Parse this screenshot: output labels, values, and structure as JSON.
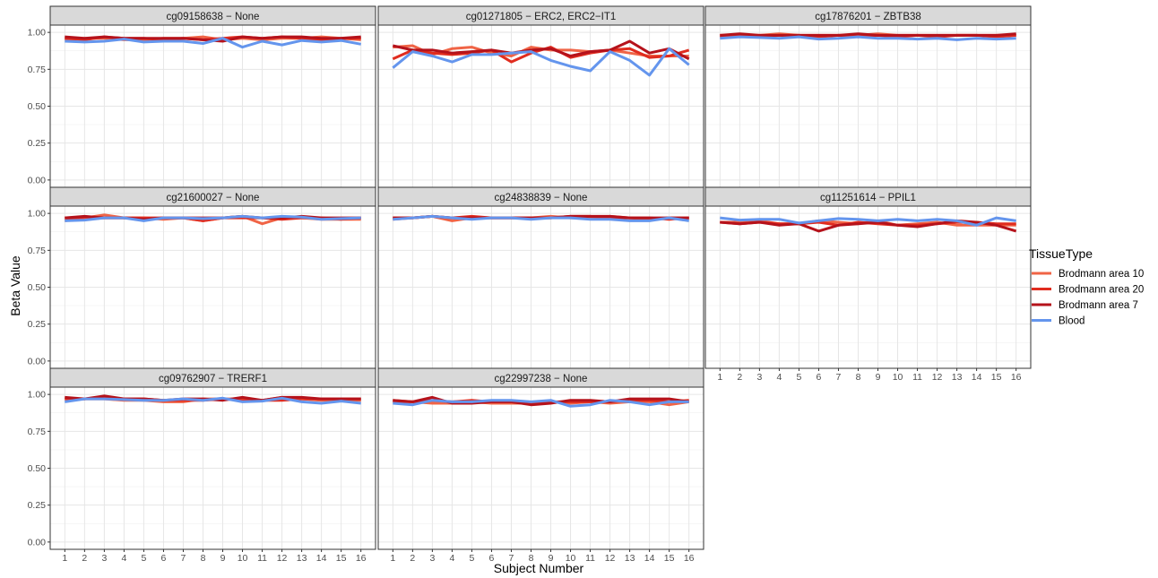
{
  "chart_data": {
    "type": "line",
    "xlabel": "Subject Number",
    "ylabel": "Beta Value",
    "x": [
      1,
      2,
      3,
      4,
      5,
      6,
      7,
      8,
      9,
      10,
      11,
      12,
      13,
      14,
      15,
      16
    ],
    "ylim": [
      0,
      1.0
    ],
    "yticks": [
      0.0,
      0.25,
      0.5,
      0.75,
      1.0
    ],
    "ytick_labels": [
      "0.00",
      "0.25",
      "0.50",
      "0.75",
      "1.00"
    ],
    "grid": true,
    "legend": {
      "title": "TissueType",
      "position": "right",
      "entries": [
        {
          "name": "Brodmann area 10",
          "color": "#f06446"
        },
        {
          "name": "Brodmann area 20",
          "color": "#e02c1f"
        },
        {
          "name": "Brodmann area 7",
          "color": "#b5121b"
        },
        {
          "name": "Blood",
          "color": "#6495ed"
        }
      ]
    },
    "panels": [
      {
        "title": "cg09158638 − None",
        "series": [
          {
            "name": "Brodmann area 10",
            "values": [
              0.95,
              0.96,
              0.96,
              0.95,
              0.95,
              0.96,
              0.96,
              0.97,
              0.95,
              0.96,
              0.95,
              0.96,
              0.96,
              0.97,
              0.96,
              0.95
            ]
          },
          {
            "name": "Brodmann area 20",
            "values": [
              0.96,
              0.95,
              0.97,
              0.96,
              0.96,
              0.95,
              0.96,
              0.95,
              0.96,
              0.97,
              0.96,
              0.97,
              0.96,
              0.95,
              0.96,
              0.96
            ]
          },
          {
            "name": "Brodmann area 7",
            "values": [
              0.97,
              0.96,
              0.97,
              0.96,
              0.96,
              0.96,
              0.96,
              0.95,
              0.94,
              0.97,
              0.96,
              0.97,
              0.97,
              0.96,
              0.96,
              0.97
            ]
          },
          {
            "name": "Blood",
            "values": [
              0.94,
              0.935,
              0.94,
              0.955,
              0.935,
              0.94,
              0.94,
              0.925,
              0.96,
              0.9,
              0.94,
              0.915,
              0.945,
              0.935,
              0.945,
              0.92
            ]
          }
        ]
      },
      {
        "title": "cg01271805 − ERC2, ERC2−IT1",
        "series": [
          {
            "name": "Brodmann area 10",
            "values": [
              0.9,
              0.91,
              0.85,
              0.89,
              0.9,
              0.86,
              0.84,
              0.9,
              0.88,
              0.88,
              0.87,
              0.88,
              0.86,
              0.84,
              0.84,
              0.84
            ]
          },
          {
            "name": "Brodmann area 20",
            "values": [
              0.82,
              0.88,
              0.86,
              0.85,
              0.86,
              0.88,
              0.8,
              0.86,
              0.9,
              0.83,
              0.86,
              0.88,
              0.89,
              0.83,
              0.84,
              0.88
            ]
          },
          {
            "name": "Brodmann area 7",
            "values": [
              0.91,
              0.88,
              0.88,
              0.86,
              0.87,
              0.88,
              0.86,
              0.88,
              0.89,
              0.84,
              0.87,
              0.88,
              0.94,
              0.86,
              0.89,
              0.82
            ]
          },
          {
            "name": "Blood",
            "values": [
              0.76,
              0.87,
              0.84,
              0.8,
              0.85,
              0.85,
              0.86,
              0.87,
              0.81,
              0.77,
              0.74,
              0.87,
              0.81,
              0.71,
              0.89,
              0.78
            ]
          }
        ]
      },
      {
        "title": "cg17876201 − ZBTB38",
        "series": [
          {
            "name": "Brodmann area 10",
            "values": [
              0.98,
              0.98,
              0.98,
              0.99,
              0.98,
              0.98,
              0.98,
              0.98,
              0.99,
              0.98,
              0.98,
              0.98,
              0.98,
              0.98,
              0.98,
              0.98
            ]
          },
          {
            "name": "Brodmann area 20",
            "values": [
              0.97,
              0.98,
              0.97,
              0.98,
              0.98,
              0.97,
              0.98,
              0.97,
              0.98,
              0.97,
              0.98,
              0.97,
              0.98,
              0.98,
              0.97,
              0.98
            ]
          },
          {
            "name": "Brodmann area 7",
            "values": [
              0.98,
              0.99,
              0.98,
              0.98,
              0.98,
              0.98,
              0.98,
              0.99,
              0.98,
              0.98,
              0.98,
              0.98,
              0.98,
              0.98,
              0.98,
              0.99
            ]
          },
          {
            "name": "Blood",
            "values": [
              0.96,
              0.97,
              0.965,
              0.96,
              0.97,
              0.955,
              0.96,
              0.97,
              0.96,
              0.96,
              0.955,
              0.96,
              0.95,
              0.96,
              0.955,
              0.96
            ]
          }
        ]
      },
      {
        "title": "cg21600027 − None",
        "series": [
          {
            "name": "Brodmann area 10",
            "values": [
              0.95,
              0.97,
              0.99,
              0.97,
              0.97,
              0.96,
              0.97,
              0.95,
              0.97,
              0.98,
              0.93,
              0.97,
              0.97,
              0.96,
              0.96,
              0.96
            ]
          },
          {
            "name": "Brodmann area 20",
            "values": [
              0.97,
              0.96,
              0.97,
              0.97,
              0.97,
              0.97,
              0.97,
              0.95,
              0.97,
              0.97,
              0.97,
              0.96,
              0.97,
              0.97,
              0.96,
              0.97
            ]
          },
          {
            "name": "Brodmann area 7",
            "values": [
              0.97,
              0.98,
              0.97,
              0.97,
              0.96,
              0.97,
              0.97,
              0.97,
              0.97,
              0.98,
              0.97,
              0.97,
              0.98,
              0.97,
              0.97,
              0.97
            ]
          },
          {
            "name": "Blood",
            "values": [
              0.95,
              0.955,
              0.97,
              0.97,
              0.95,
              0.97,
              0.97,
              0.965,
              0.97,
              0.98,
              0.97,
              0.98,
              0.975,
              0.96,
              0.965,
              0.97
            ]
          }
        ]
      },
      {
        "title": "cg24838839 − None",
        "series": [
          {
            "name": "Brodmann area 10",
            "values": [
              0.96,
              0.97,
              0.98,
              0.95,
              0.97,
              0.97,
              0.97,
              0.97,
              0.98,
              0.97,
              0.97,
              0.98,
              0.97,
              0.96,
              0.97,
              0.97
            ]
          },
          {
            "name": "Brodmann area 20",
            "values": [
              0.97,
              0.97,
              0.98,
              0.97,
              0.98,
              0.97,
              0.97,
              0.97,
              0.97,
              0.98,
              0.98,
              0.97,
              0.97,
              0.97,
              0.96,
              0.97
            ]
          },
          {
            "name": "Brodmann area 7",
            "values": [
              0.97,
              0.97,
              0.98,
              0.97,
              0.97,
              0.97,
              0.97,
              0.97,
              0.97,
              0.98,
              0.98,
              0.98,
              0.97,
              0.97,
              0.97,
              0.97
            ]
          },
          {
            "name": "Blood",
            "values": [
              0.96,
              0.97,
              0.98,
              0.97,
              0.96,
              0.97,
              0.97,
              0.96,
              0.97,
              0.97,
              0.96,
              0.96,
              0.95,
              0.95,
              0.97,
              0.95
            ]
          }
        ]
      },
      {
        "title": "cg11251614 − PPIL1",
        "series": [
          {
            "name": "Brodmann area 10",
            "values": [
              0.94,
              0.94,
              0.95,
              0.93,
              0.93,
              0.95,
              0.94,
              0.93,
              0.95,
              0.92,
              0.93,
              0.94,
              0.92,
              0.92,
              0.92,
              0.92
            ]
          },
          {
            "name": "Brodmann area 20",
            "values": [
              0.94,
              0.93,
              0.94,
              0.93,
              0.93,
              0.94,
              0.92,
              0.94,
              0.93,
              0.92,
              0.92,
              0.93,
              0.94,
              0.94,
              0.93,
              0.93
            ]
          },
          {
            "name": "Brodmann area 7",
            "values": [
              0.94,
              0.93,
              0.94,
              0.92,
              0.93,
              0.88,
              0.92,
              0.93,
              0.94,
              0.92,
              0.91,
              0.93,
              0.95,
              0.94,
              0.92,
              0.88
            ]
          },
          {
            "name": "Blood",
            "values": [
              0.97,
              0.955,
              0.96,
              0.96,
              0.935,
              0.95,
              0.965,
              0.96,
              0.95,
              0.96,
              0.95,
              0.96,
              0.95,
              0.92,
              0.97,
              0.95
            ]
          }
        ]
      },
      {
        "title": "cg09762907 − TRERF1",
        "series": [
          {
            "name": "Brodmann area 10",
            "values": [
              0.97,
              0.97,
              0.97,
              0.96,
              0.96,
              0.95,
              0.95,
              0.97,
              0.97,
              0.97,
              0.96,
              0.98,
              0.97,
              0.96,
              0.96,
              0.96
            ]
          },
          {
            "name": "Brodmann area 20",
            "values": [
              0.97,
              0.97,
              0.98,
              0.97,
              0.97,
              0.96,
              0.96,
              0.96,
              0.97,
              0.96,
              0.96,
              0.96,
              0.97,
              0.97,
              0.97,
              0.97
            ]
          },
          {
            "name": "Brodmann area 7",
            "values": [
              0.98,
              0.97,
              0.99,
              0.97,
              0.97,
              0.96,
              0.97,
              0.97,
              0.96,
              0.98,
              0.96,
              0.98,
              0.98,
              0.97,
              0.97,
              0.97
            ]
          },
          {
            "name": "Blood",
            "values": [
              0.95,
              0.97,
              0.97,
              0.965,
              0.96,
              0.96,
              0.97,
              0.96,
              0.975,
              0.95,
              0.955,
              0.975,
              0.95,
              0.94,
              0.955,
              0.94
            ]
          }
        ]
      },
      {
        "title": "cg22997238 − None",
        "series": [
          {
            "name": "Brodmann area 10",
            "values": [
              0.96,
              0.95,
              0.94,
              0.94,
              0.95,
              0.94,
              0.94,
              0.94,
              0.95,
              0.94,
              0.95,
              0.94,
              0.95,
              0.95,
              0.93,
              0.95
            ]
          },
          {
            "name": "Brodmann area 20",
            "values": [
              0.95,
              0.95,
              0.96,
              0.95,
              0.96,
              0.95,
              0.95,
              0.94,
              0.95,
              0.95,
              0.95,
              0.95,
              0.96,
              0.96,
              0.95,
              0.96
            ]
          },
          {
            "name": "Brodmann area 7",
            "values": [
              0.96,
              0.95,
              0.98,
              0.94,
              0.94,
              0.95,
              0.95,
              0.93,
              0.94,
              0.96,
              0.96,
              0.95,
              0.97,
              0.97,
              0.97,
              0.95
            ]
          },
          {
            "name": "Blood",
            "values": [
              0.94,
              0.93,
              0.96,
              0.95,
              0.95,
              0.96,
              0.96,
              0.95,
              0.96,
              0.92,
              0.93,
              0.96,
              0.95,
              0.93,
              0.95,
              0.95
            ]
          }
        ]
      }
    ]
  }
}
